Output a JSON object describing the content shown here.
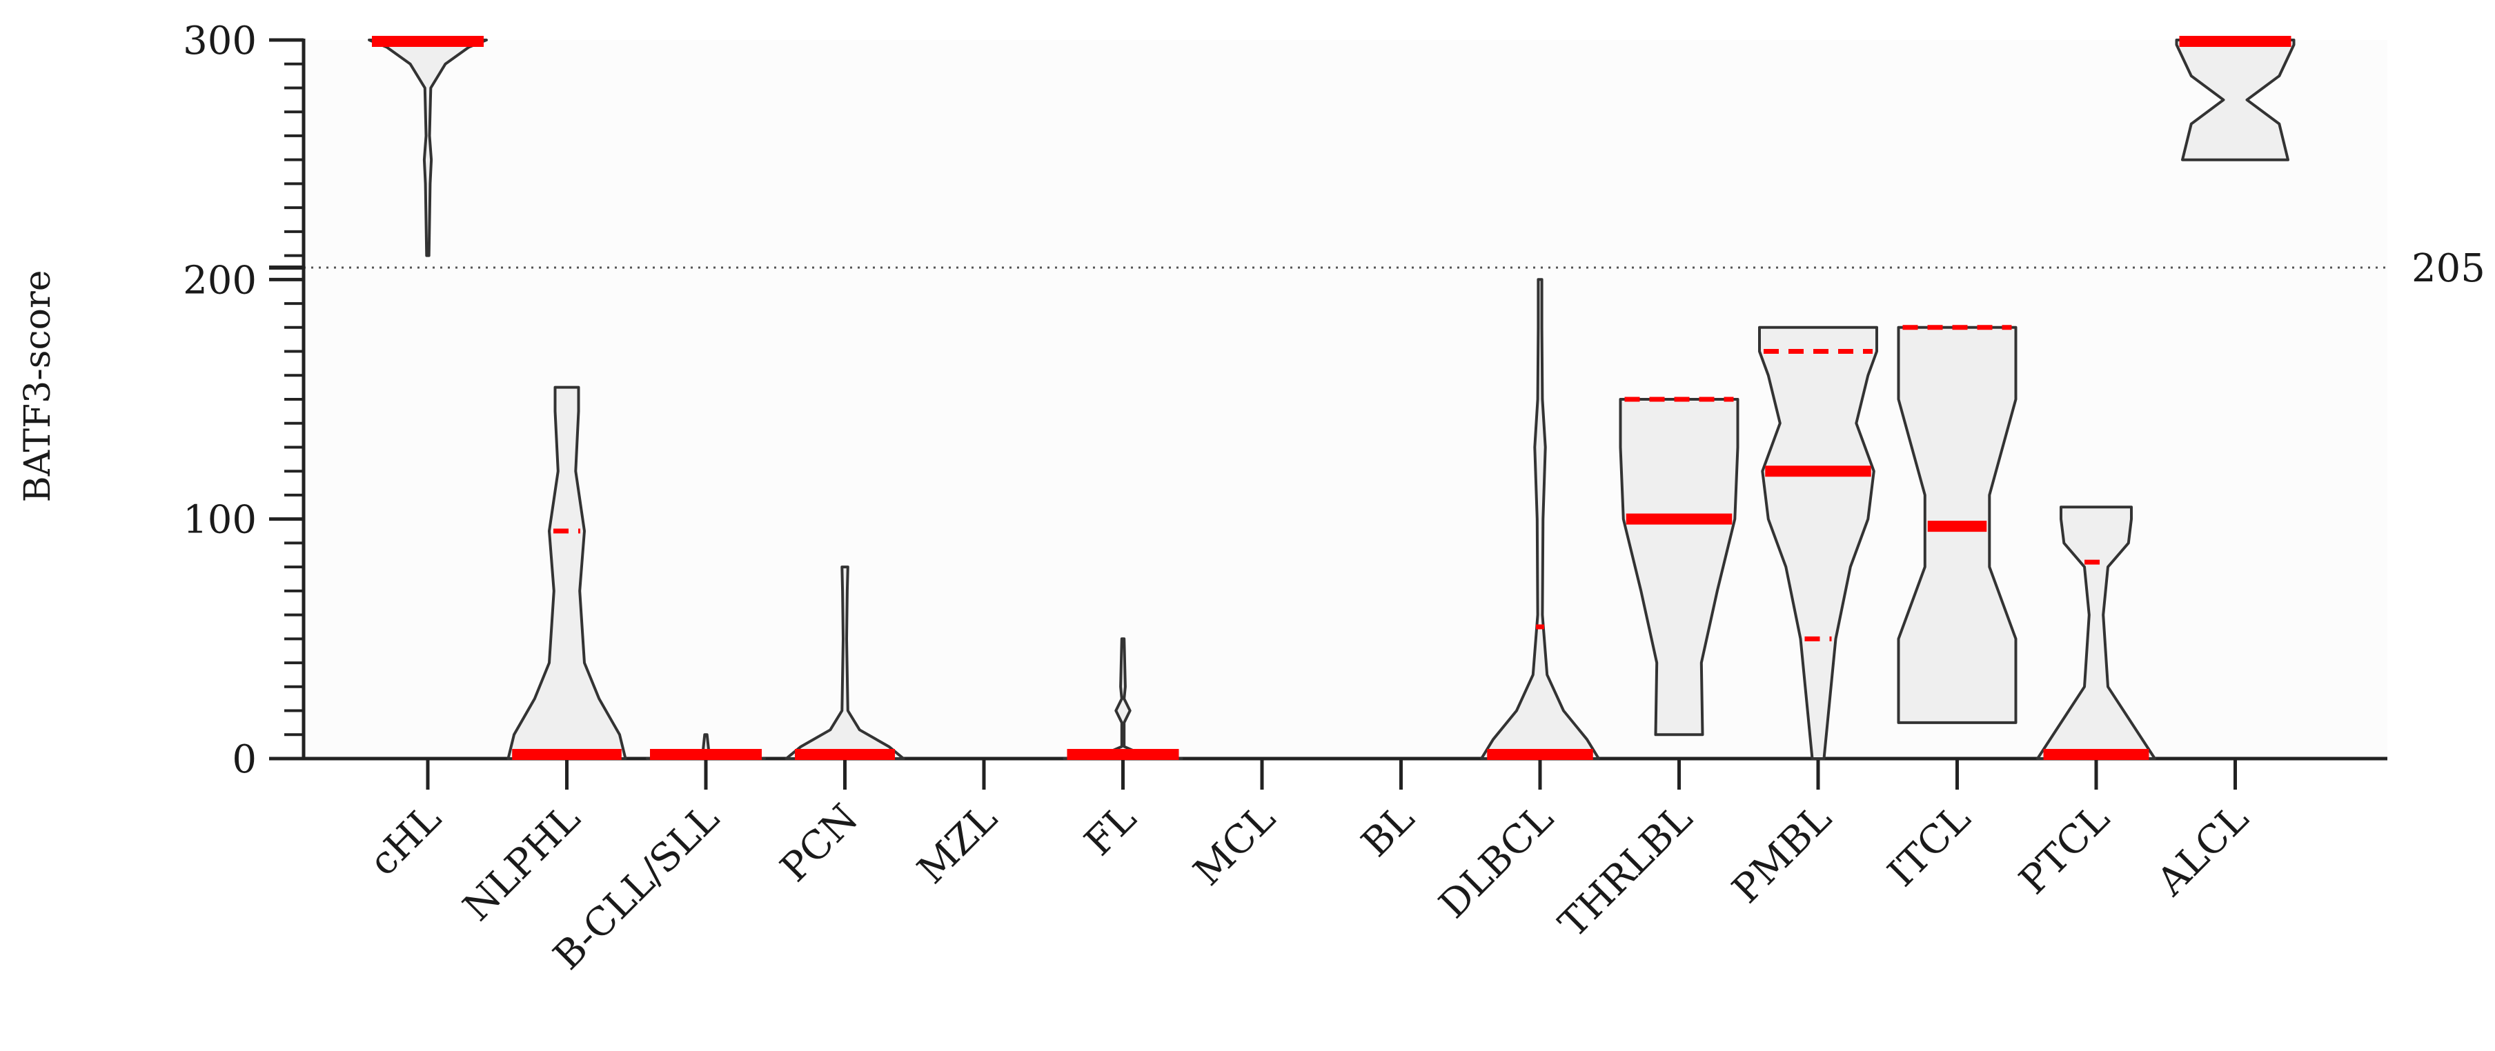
{
  "chart_data": {
    "type": "violin",
    "ylabel": "BATF3-score",
    "ylim": [
      0,
      300
    ],
    "yticks": [
      "0",
      "100",
      "200",
      "300"
    ],
    "reference_line": {
      "value": 205,
      "label": "205"
    },
    "grid": false,
    "categories": [
      "cHL",
      "NLPHL",
      "B-CLL/SLL",
      "PCN",
      "MZL",
      "FL",
      "MCL",
      "BL",
      "DLBCL",
      "THRLBL",
      "PMBL",
      "ITCL",
      "PTCL",
      "ALCL"
    ],
    "median_color": "#ff0000",
    "violin_fill": "#efefef",
    "violin_stroke": "#333333",
    "series": [
      {
        "category": "cHL",
        "min": 210,
        "max": 300,
        "median": 300,
        "quartiles": [],
        "density": [
          [
            210,
            0.02
          ],
          [
            240,
            0.04
          ],
          [
            250,
            0.06
          ],
          [
            260,
            0.03
          ],
          [
            280,
            0.05
          ],
          [
            290,
            0.3
          ],
          [
            297,
            0.7
          ],
          [
            300,
            1
          ]
        ]
      },
      {
        "category": "NLPHL",
        "min": 0,
        "max": 155,
        "median": 2,
        "quartiles": [
          95
        ],
        "density": [
          [
            0,
            1
          ],
          [
            10,
            0.9
          ],
          [
            25,
            0.55
          ],
          [
            40,
            0.3
          ],
          [
            70,
            0.22
          ],
          [
            95,
            0.3
          ],
          [
            120,
            0.15
          ],
          [
            145,
            0.2
          ],
          [
            155,
            0.2
          ]
        ]
      },
      {
        "category": "B-CLL/SLL",
        "min": 0,
        "max": 10,
        "median": 0,
        "quartiles": [],
        "density": [
          [
            0,
            1
          ],
          [
            1,
            0.6
          ],
          [
            3,
            0.05
          ],
          [
            10,
            0.02
          ]
        ]
      },
      {
        "category": "PCN",
        "min": 0,
        "max": 80,
        "median": 2,
        "quartiles": [],
        "density": [
          [
            0,
            1
          ],
          [
            5,
            0.75
          ],
          [
            12,
            0.25
          ],
          [
            20,
            0.05
          ],
          [
            50,
            0.03
          ],
          [
            70,
            0.04
          ],
          [
            80,
            0.05
          ]
        ]
      },
      {
        "category": "MZL",
        "min": 0,
        "max": 0,
        "median": 0,
        "quartiles": [],
        "density": []
      },
      {
        "category": "FL",
        "min": 0,
        "max": 50,
        "median": 0,
        "quartiles": [],
        "density": [
          [
            0,
            1
          ],
          [
            1,
            0.4
          ],
          [
            5,
            0.02
          ],
          [
            15,
            0.02
          ],
          [
            20,
            0.12
          ],
          [
            25,
            0.02
          ],
          [
            30,
            0.04
          ],
          [
            50,
            0.02
          ]
        ]
      },
      {
        "category": "MCL",
        "min": 0,
        "max": 0,
        "median": 0,
        "quartiles": [],
        "density": []
      },
      {
        "category": "BL",
        "min": 0,
        "max": 0,
        "median": 0,
        "quartiles": [],
        "density": []
      },
      {
        "category": "DLBCL",
        "min": 0,
        "max": 200,
        "median": 2,
        "quartiles": [
          55
        ],
        "density": [
          [
            0,
            1
          ],
          [
            8,
            0.8
          ],
          [
            20,
            0.4
          ],
          [
            35,
            0.12
          ],
          [
            60,
            0.04
          ],
          [
            100,
            0.05
          ],
          [
            130,
            0.09
          ],
          [
            150,
            0.04
          ],
          [
            180,
            0.03
          ],
          [
            200,
            0.03
          ]
        ]
      },
      {
        "category": "THRLBL",
        "min": 10,
        "max": 150,
        "median": 100,
        "quartiles": [
          150
        ],
        "density": [
          [
            10,
            0.4
          ],
          [
            40,
            0.38
          ],
          [
            70,
            0.65
          ],
          [
            100,
            0.95
          ],
          [
            130,
            1
          ],
          [
            150,
            1
          ]
        ]
      },
      {
        "category": "PMBL",
        "min": 0,
        "max": 180,
        "median": 120,
        "quartiles": [
          50,
          170
        ],
        "density": [
          [
            0,
            0.1
          ],
          [
            30,
            0.22
          ],
          [
            50,
            0.3
          ],
          [
            80,
            0.55
          ],
          [
            100,
            0.85
          ],
          [
            120,
            0.95
          ],
          [
            140,
            0.65
          ],
          [
            160,
            0.85
          ],
          [
            170,
            1
          ],
          [
            180,
            1
          ]
        ]
      },
      {
        "category": "ITCL",
        "min": 15,
        "max": 180,
        "median": 97,
        "quartiles": [
          180
        ],
        "density": [
          [
            15,
            1
          ],
          [
            50,
            1
          ],
          [
            80,
            0.55
          ],
          [
            110,
            0.55
          ],
          [
            150,
            1
          ],
          [
            180,
            1
          ]
        ]
      },
      {
        "category": "PTCL",
        "min": 0,
        "max": 105,
        "median": 2,
        "quartiles": [
          82
        ],
        "density": [
          [
            0,
            1
          ],
          [
            15,
            0.6
          ],
          [
            30,
            0.2
          ],
          [
            60,
            0.12
          ],
          [
            80,
            0.2
          ],
          [
            90,
            0.55
          ],
          [
            100,
            0.6
          ],
          [
            105,
            0.6
          ]
        ]
      },
      {
        "category": "ALCL",
        "min": 250,
        "max": 300,
        "median": 300,
        "quartiles": [],
        "density": [
          [
            250,
            0.9
          ],
          [
            265,
            0.75
          ],
          [
            275,
            0.2
          ],
          [
            285,
            0.75
          ],
          [
            298,
            1
          ],
          [
            300,
            1
          ]
        ]
      }
    ]
  }
}
